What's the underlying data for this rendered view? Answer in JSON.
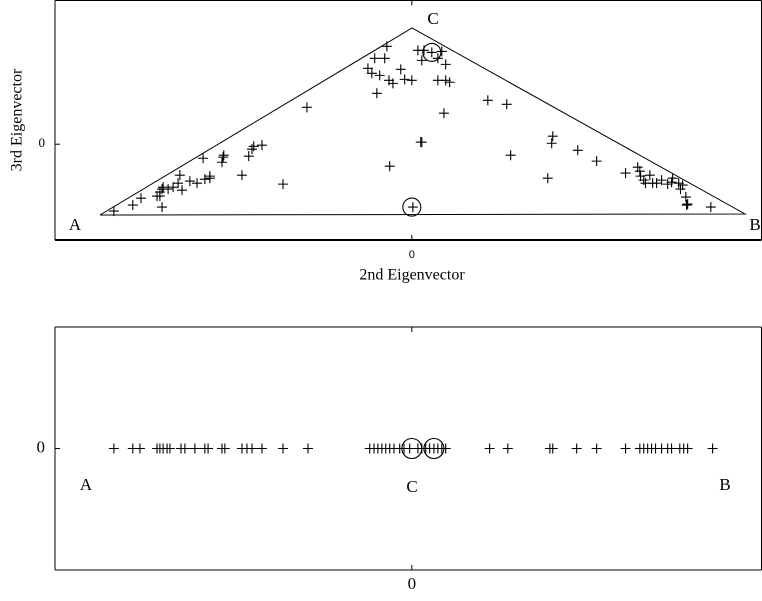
{
  "chart_data": [
    {
      "type": "scatter",
      "xlabel": "2nd Eigenvector",
      "ylabel": "3rd Eigenvector",
      "xlim": [
        -1,
        0.98
      ],
      "ylim": [
        -0.6,
        0.9
      ],
      "xticks": [
        0
      ],
      "yticks": [
        0
      ],
      "annotations": [
        "A",
        "B",
        "C"
      ],
      "series": [
        {
          "marker": "plus",
          "color": "#000000",
          "x": [
            -0.835,
            -0.782,
            -0.759,
            -0.714,
            -0.706,
            -0.7,
            -0.697,
            -0.7,
            -0.706,
            -0.683,
            -0.669,
            -0.655,
            -0.65,
            -0.644,
            -0.622,
            -0.602,
            -0.585,
            -0.58,
            -0.566,
            -0.566,
            -0.532,
            -0.529,
            -0.527,
            -0.476,
            -0.457,
            -0.448,
            -0.443,
            -0.42,
            -0.361,
            -0.294,
            -0.07,
            -0.104,
            -0.123,
            -0.112,
            -0.09,
            -0.064,
            -0.053,
            -0.076,
            -0.031,
            -0.02,
            0.017,
            0.034,
            0.056,
            0.073,
            0.084,
            0.095,
            0.095,
            0.073,
            0.028,
            0,
            -0.098,
            -0.062,
            0.028,
            0.09,
            0.106,
            0.213,
            0.266,
            0.277,
            0.392,
            0.395,
            0.381,
            0.465,
            0.518,
            0.599,
            0.633,
            0.639,
            0.641,
            0.65,
            0.655,
            0.667,
            0.675,
            0.686,
            0.7,
            0.717,
            0.728,
            0.731,
            0.748,
            0.753,
            0.759,
            0.768,
            0.77,
            0.773,
            0.838,
            0.025,
            0.003
          ],
          "y": [
            -0.419,
            -0.381,
            -0.338,
            -0.325,
            -0.3,
            -0.281,
            -0.269,
            -0.394,
            -0.325,
            -0.281,
            -0.269,
            -0.244,
            -0.194,
            -0.288,
            -0.231,
            -0.244,
            -0.088,
            -0.219,
            -0.213,
            -0.2,
            -0.113,
            -0.081,
            -0.069,
            -0.194,
            -0.075,
            -0.031,
            -0.013,
            -0.006,
            -0.25,
            0.231,
            0.613,
            0.538,
            0.475,
            0.444,
            0.431,
            0.4,
            0.381,
            0.538,
            0.469,
            0.406,
            0.588,
            0.588,
            0.575,
            0.538,
            0.581,
            0.5,
            0.4,
            0.4,
            0.525,
            0.4,
            0.319,
            -0.138,
            0.013,
            0.194,
            0.388,
            0.275,
            0.25,
            -0.069,
            0.006,
            0.05,
            -0.213,
            -0.038,
            -0.106,
            -0.181,
            -0.144,
            -0.169,
            -0.2,
            -0.225,
            -0.244,
            -0.194,
            -0.244,
            -0.244,
            -0.225,
            -0.25,
            -0.238,
            -0.213,
            -0.244,
            -0.281,
            -0.256,
            -0.331,
            -0.381,
            -0.375,
            -0.394,
            0.013,
            -0.394
          ]
        },
        {
          "marker": "circle",
          "color": "#000000",
          "x": [
            0.056,
            0
          ],
          "y": [
            0.575,
            -0.394
          ]
        }
      ]
    },
    {
      "type": "scatter",
      "xlim": [
        -1,
        0.98
      ],
      "ylim": [
        -1,
        1
      ],
      "xticks": [
        0
      ],
      "yticks": [
        0
      ],
      "annotations": [
        "A",
        "C",
        "B"
      ],
      "series": [
        {
          "marker": "plus",
          "color": "#000000",
          "x": [
            -0.835,
            -0.782,
            -0.762,
            -0.714,
            -0.706,
            -0.697,
            -0.686,
            -0.678,
            -0.647,
            -0.636,
            -0.608,
            -0.58,
            -0.571,
            -0.532,
            -0.524,
            -0.476,
            -0.462,
            -0.448,
            -0.42,
            -0.361,
            -0.291,
            -0.118,
            -0.106,
            -0.095,
            -0.084,
            -0.073,
            -0.062,
            -0.05,
            -0.034,
            -0.022,
            -0.006,
            0.017,
            0.028,
            0.039,
            0.05,
            0.062,
            0.073,
            0.084,
            0.095,
            0.218,
            0.269,
            0.387,
            0.395,
            0.462,
            0.518,
            0.599,
            0.639,
            0.65,
            0.661,
            0.672,
            0.683,
            0.7,
            0.717,
            0.728,
            0.751,
            0.762,
            0.773,
            0.843
          ],
          "y": [
            0,
            0,
            0,
            0,
            0,
            0,
            0,
            0,
            0,
            0,
            0,
            0,
            0,
            0,
            0,
            0,
            0,
            0,
            0,
            0,
            0,
            0,
            0,
            0,
            0,
            0,
            0,
            0,
            0,
            0,
            0,
            0,
            0,
            0,
            0,
            0,
            0,
            0,
            0,
            0,
            0,
            0,
            0,
            0,
            0,
            0,
            0,
            0,
            0,
            0,
            0,
            0,
            0,
            0,
            0,
            0,
            0,
            0
          ]
        },
        {
          "marker": "circle",
          "color": "#000000",
          "x": [
            0,
            0.062
          ],
          "y": [
            0,
            0
          ]
        }
      ]
    }
  ]
}
